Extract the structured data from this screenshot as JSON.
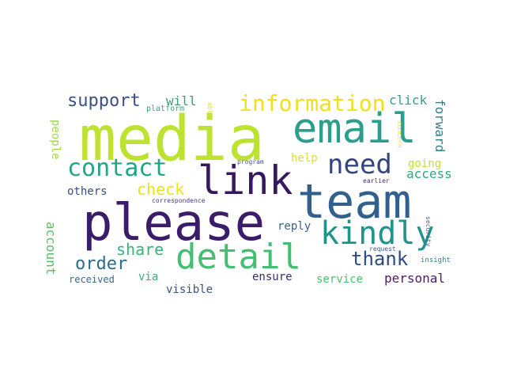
{
  "words": [
    {
      "text": "media",
      "color": "#bde22f"
    },
    {
      "text": "please",
      "color": "#3b1c6b"
    },
    {
      "text": "team",
      "color": "#31608e"
    },
    {
      "text": "email",
      "color": "#2b9e8c"
    },
    {
      "text": "link",
      "color": "#35185e"
    },
    {
      "text": "detail",
      "color": "#43bf71"
    },
    {
      "text": "kindly",
      "color": "#21928c"
    },
    {
      "text": "need",
      "color": "#33457f"
    },
    {
      "text": "contact",
      "color": "#21a585"
    },
    {
      "text": "information",
      "color": "#f0e11c"
    },
    {
      "text": "support",
      "color": "#3a4f88"
    },
    {
      "text": "order",
      "color": "#2a6c8e"
    },
    {
      "text": "thank",
      "color": "#2c4a83"
    },
    {
      "text": "check",
      "color": "#e9e31b"
    },
    {
      "text": "share",
      "color": "#3bb17a"
    },
    {
      "text": "click",
      "color": "#35a08b"
    },
    {
      "text": "will",
      "color": "#3e9b72"
    },
    {
      "text": "forward",
      "color": "#2c7e8e"
    },
    {
      "text": "access",
      "color": "#2ca97f"
    },
    {
      "text": "going",
      "color": "#bfe034"
    },
    {
      "text": "help",
      "color": "#e1dc2d"
    },
    {
      "text": "people",
      "color": "#9fd64a"
    },
    {
      "text": "others",
      "color": "#3c4a84"
    },
    {
      "text": "account",
      "color": "#5bbd67"
    },
    {
      "text": "reply",
      "color": "#3b5f8c"
    },
    {
      "text": "service",
      "color": "#49c26c"
    },
    {
      "text": "personal",
      "color": "#4b1d64"
    },
    {
      "text": "ensure",
      "color": "#3b2b74"
    },
    {
      "text": "visible",
      "color": "#3d4f85"
    },
    {
      "text": "via",
      "color": "#35b17a"
    },
    {
      "text": "received",
      "color": "#3a6a8c"
    },
    {
      "text": "platform",
      "color": "#3aa58a"
    },
    {
      "text": "able",
      "color": "#d7e336"
    },
    {
      "text": "concern",
      "color": "#e4e33f"
    },
    {
      "text": "program",
      "color": "#3f5a92"
    },
    {
      "text": "correspondence",
      "color": "#473880"
    },
    {
      "text": "earlier",
      "color": "#4a2c7a"
    },
    {
      "text": "security",
      "color": "#4b5a8c"
    },
    {
      "text": "request",
      "color": "#3e5588"
    },
    {
      "text": "insight",
      "color": "#3d7f8c"
    }
  ]
}
